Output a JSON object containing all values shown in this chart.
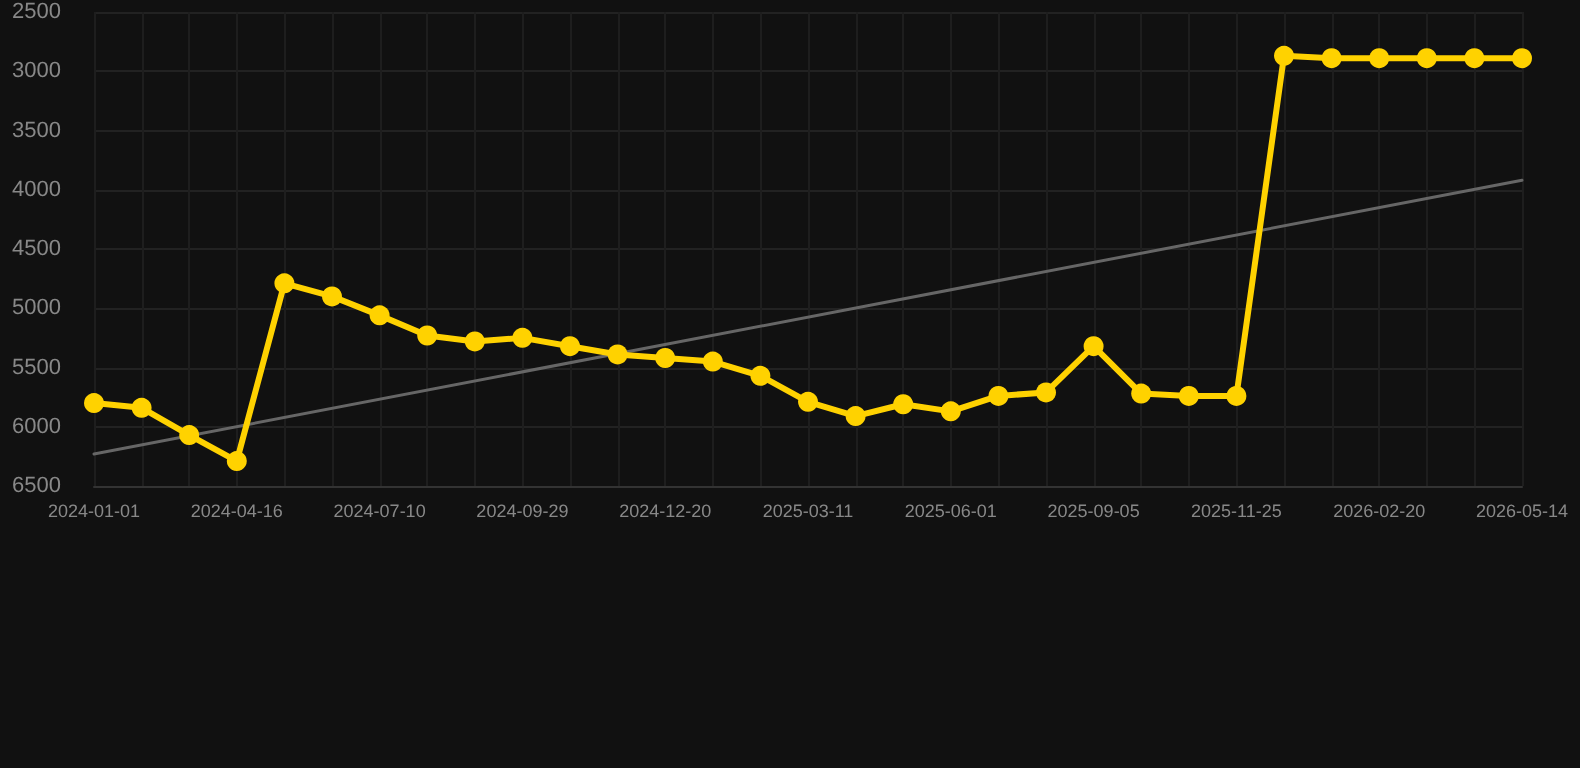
{
  "chart_data": {
    "type": "line",
    "categories": [
      "2024-01-01",
      null,
      null,
      "2024-04-16",
      null,
      null,
      "2024-07-10",
      null,
      null,
      "2024-09-29",
      null,
      null,
      "2024-12-20",
      null,
      null,
      "2025-03-11",
      null,
      null,
      "2025-06-01",
      null,
      null,
      "2025-09-05",
      null,
      null,
      "2025-11-25",
      null,
      null,
      "2026-02-20",
      null,
      null,
      "2026-05-14"
    ],
    "series": [
      {
        "color": "#ffd200",
        "values": [
          5800,
          5840,
          6070,
          6290,
          4790,
          4900,
          5060,
          5230,
          5280,
          5250,
          5320,
          5390,
          5420,
          5450,
          5570,
          5790,
          5910,
          5810,
          5870,
          5740,
          5710,
          5320,
          5720,
          5740,
          5740,
          2870,
          2890,
          2890,
          2890,
          2890,
          2890
        ],
        "marker": "circle"
      },
      {
        "type": "line",
        "color": "#666666",
        "values": [
          6230,
          null,
          null,
          null,
          null,
          null,
          null,
          null,
          null,
          null,
          null,
          null,
          null,
          null,
          null,
          null,
          null,
          null,
          null,
          null,
          null,
          null,
          null,
          null,
          null,
          null,
          null,
          null,
          null,
          null,
          3920
        ],
        "marker": "none"
      }
    ],
    "ylim": [
      6500,
      2500
    ],
    "yticks": [
      2500,
      3000,
      3500,
      4000,
      4500,
      5000,
      5500,
      6000,
      6500
    ],
    "grid": true
  }
}
